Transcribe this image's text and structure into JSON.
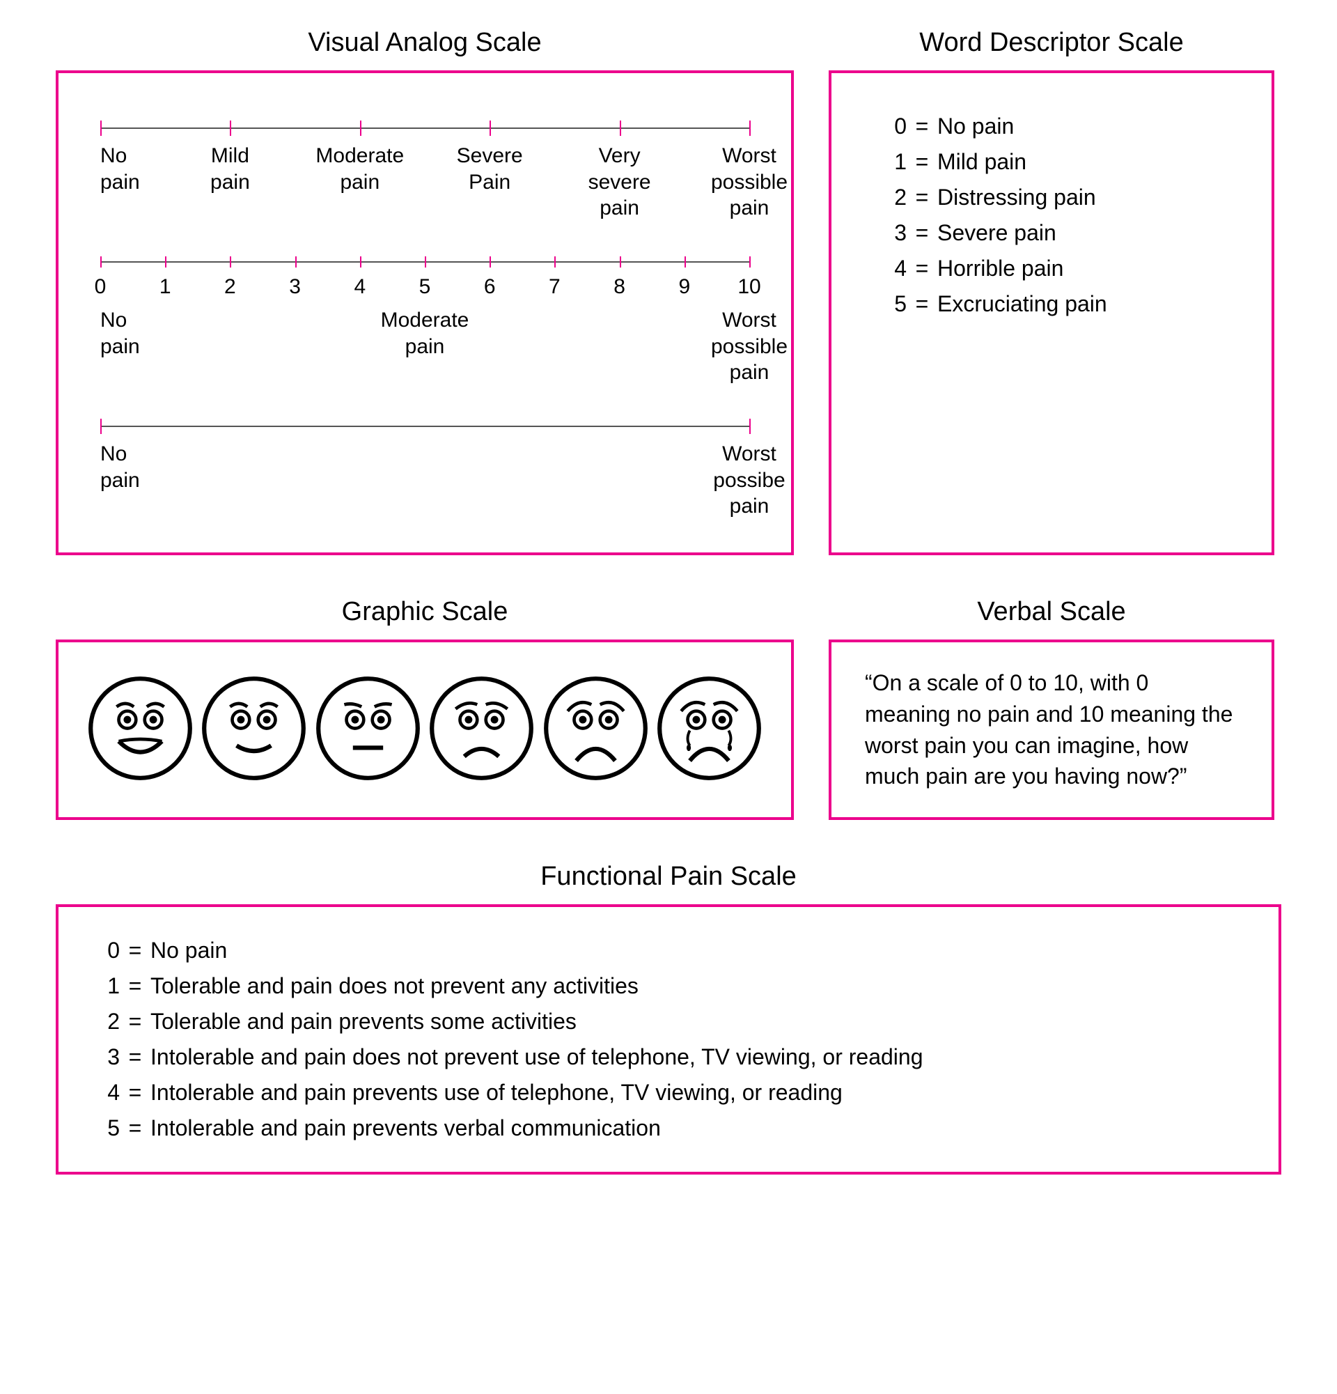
{
  "colors": {
    "border": "#ec008c",
    "tick": "#ec008c",
    "line": "#555555",
    "text": "#000000",
    "face_stroke": "#000000"
  },
  "vas": {
    "title": "Visual Analog Scale",
    "scale_a": {
      "ticks_pct": [
        0,
        20,
        40,
        60,
        80,
        100
      ],
      "labels": [
        {
          "pos": 0,
          "text": "No\npain",
          "anchor": "left"
        },
        {
          "pos": 20,
          "text": "Mild\npain"
        },
        {
          "pos": 40,
          "text": "Moderate\npain"
        },
        {
          "pos": 60,
          "text": "Severe\nPain"
        },
        {
          "pos": 80,
          "text": "Very\nsevere\npain"
        },
        {
          "pos": 100,
          "text": "Worst\npossible\npain"
        }
      ]
    },
    "scale_b": {
      "ticks_pct": [
        0,
        10,
        20,
        30,
        40,
        50,
        60,
        70,
        80,
        90,
        100
      ],
      "numbers": [
        "0",
        "1",
        "2",
        "3",
        "4",
        "5",
        "6",
        "7",
        "8",
        "9",
        "10"
      ],
      "labels": [
        {
          "pos": 0,
          "text": "No\npain",
          "anchor": "left"
        },
        {
          "pos": 50,
          "text": "Moderate\npain"
        },
        {
          "pos": 100,
          "text": "Worst\npossible\npain"
        }
      ]
    },
    "scale_c": {
      "ticks_pct": [
        0,
        100
      ],
      "labels": [
        {
          "pos": 0,
          "text": "No\npain",
          "anchor": "left"
        },
        {
          "pos": 100,
          "text": "Worst\npossibe\npain"
        }
      ]
    }
  },
  "word_descriptor": {
    "title": "Word Descriptor Scale",
    "items": [
      {
        "n": "0",
        "t": "No pain"
      },
      {
        "n": "1",
        "t": "Mild pain"
      },
      {
        "n": "2",
        "t": "Distressing pain"
      },
      {
        "n": "3",
        "t": "Severe pain"
      },
      {
        "n": "4",
        "t": "Horrible pain"
      },
      {
        "n": "5",
        "t": "Excruciating pain"
      }
    ]
  },
  "graphic": {
    "title": "Graphic Scale",
    "faces": [
      {
        "expression": "very-happy"
      },
      {
        "expression": "happy"
      },
      {
        "expression": "neutral"
      },
      {
        "expression": "sad"
      },
      {
        "expression": "very-sad"
      },
      {
        "expression": "crying"
      }
    ]
  },
  "verbal": {
    "title": "Verbal Scale",
    "text": "“On a scale of 0 to 10, with 0 meaning no pain and 10 meaning the worst pain you can imagine, how much pain are you having now?”"
  },
  "functional": {
    "title": "Functional Pain  Scale",
    "items": [
      {
        "n": "0",
        "t": "No pain"
      },
      {
        "n": "1",
        "t": "Tolerable and pain does not prevent any activities"
      },
      {
        "n": "2",
        "t": "Tolerable and pain prevents some activities"
      },
      {
        "n": "3",
        "t": "Intolerable and pain does not prevent use of telephone, TV viewing, or reading"
      },
      {
        "n": "4",
        "t": "Intolerable and pain prevents use of telephone, TV viewing, or reading"
      },
      {
        "n": "5",
        "t": "Intolerable and pain prevents verbal communication"
      }
    ]
  },
  "eq": "="
}
